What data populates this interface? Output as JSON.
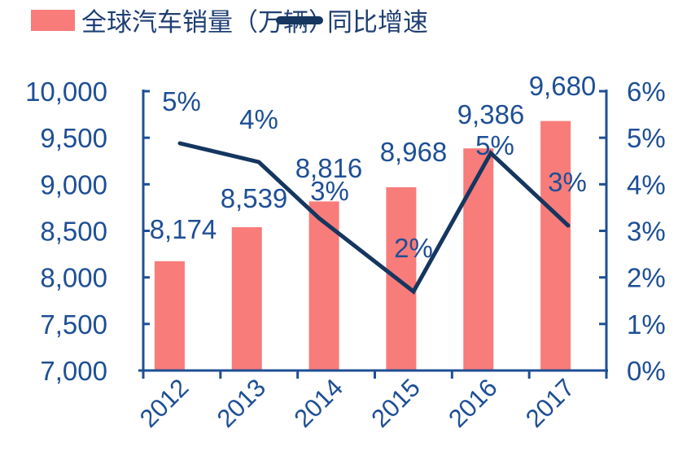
{
  "chart_data": {
    "type": "bar+line",
    "title": "",
    "categories": [
      "2012",
      "2013",
      "2014",
      "2015",
      "2016",
      "2017"
    ],
    "series": [
      {
        "name": "全球汽车销量（万辆）",
        "type": "bar",
        "axis": "left",
        "color": "#f87c7a",
        "values": [
          8174,
          8539,
          8816,
          8968,
          9386,
          9680
        ],
        "labels": [
          "8,174",
          "8,539",
          "8,816",
          "8,968",
          "9,386",
          "9,680"
        ]
      },
      {
        "name": "同比增速",
        "type": "line",
        "axis": "right",
        "color": "#14365f",
        "values": [
          4.9,
          4.5,
          3.3,
          1.7,
          4.7,
          3.1
        ],
        "labels": [
          "5%",
          "4%",
          "3%",
          "2%",
          "5%",
          "3%"
        ]
      }
    ],
    "left_axis": {
      "ylim": [
        7000,
        10000
      ],
      "ticks": [
        "10,000",
        "9,500",
        "9,000",
        "8,500",
        "8,000",
        "7,500",
        "7,000"
      ]
    },
    "right_axis": {
      "ylim": [
        0,
        6
      ],
      "ticks": [
        "6%",
        "5%",
        "4%",
        "3%",
        "2%",
        "1%",
        "0%"
      ]
    },
    "xlabel": "",
    "ylabel": "",
    "grid": false,
    "legend_position": "top"
  },
  "legend": {
    "bar_label": "全球汽车销量（万辆）",
    "line_label": "同比增速"
  },
  "colors": {
    "bar": "#f87c7a",
    "line": "#14365f",
    "axis": "#1e4f95",
    "text": "#1e4f95"
  }
}
